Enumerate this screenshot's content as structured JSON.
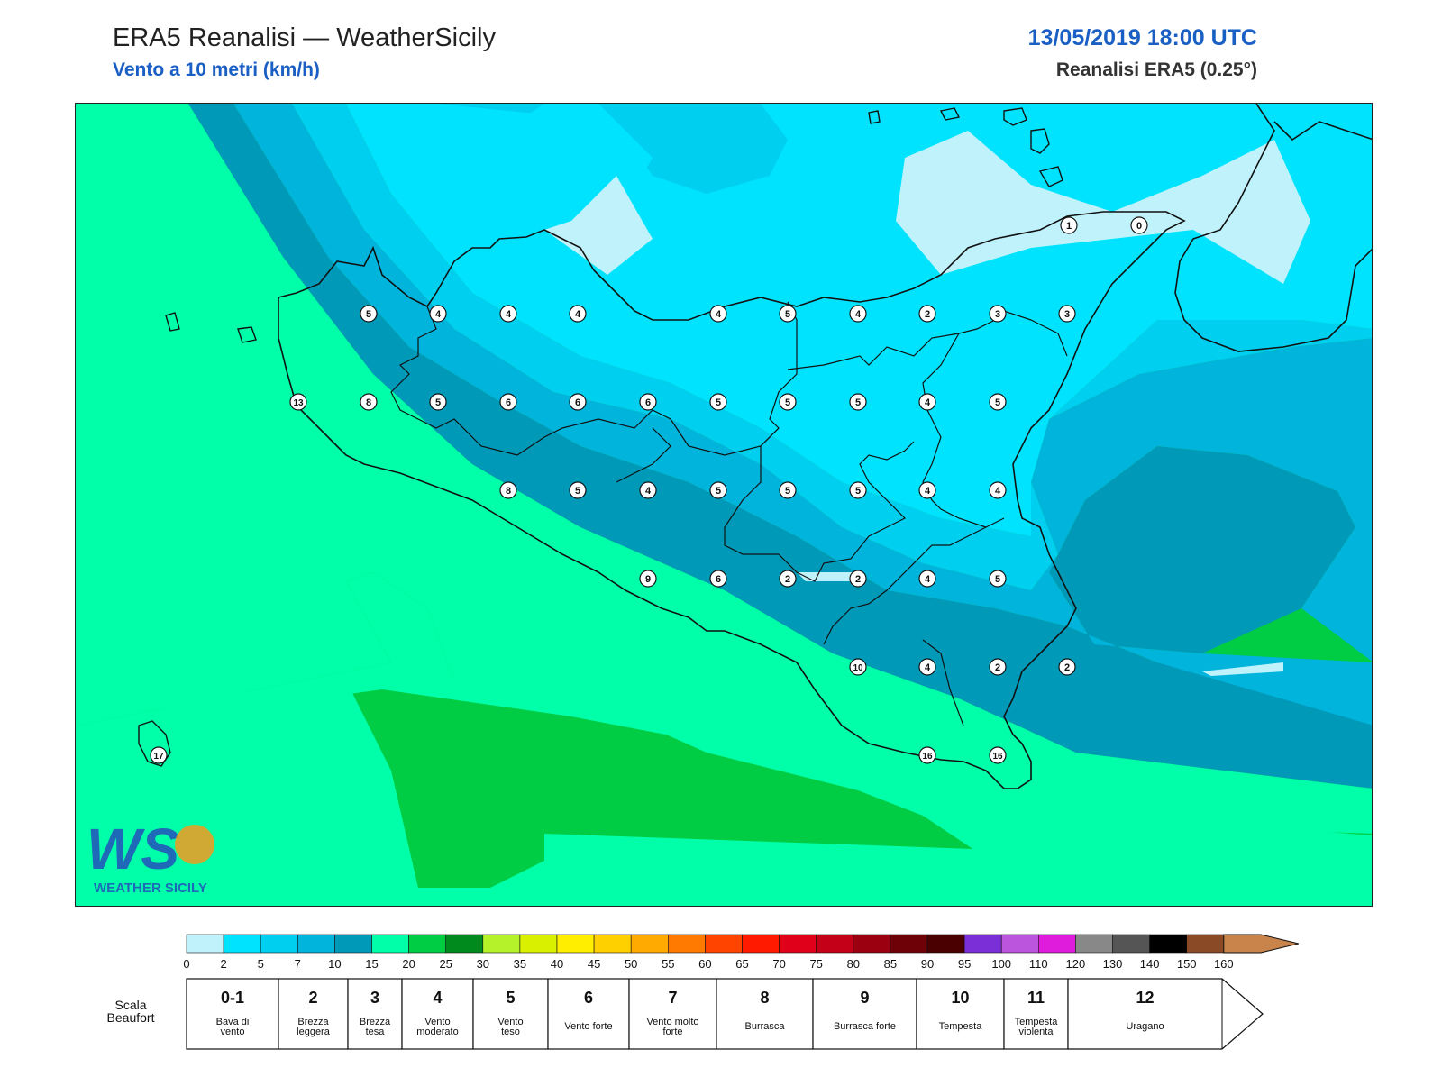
{
  "header": {
    "title": "ERA5 Reanalisi — WeatherSicily",
    "subtitle": "Vento a 10 metri (km/h)",
    "datetime": "13/05/2019 18:00 UTC",
    "source": "Reanalisi ERA5 (0.25°)"
  },
  "logo": {
    "initials": "WS",
    "name": "WEATHER SICILY"
  },
  "wind_labels": [
    {
      "v": "1"
    },
    {
      "v": "0"
    },
    {
      "v": "5"
    },
    {
      "v": "4"
    },
    {
      "v": "4"
    },
    {
      "v": "4"
    },
    {
      "v": "4"
    },
    {
      "v": "5"
    },
    {
      "v": "4"
    },
    {
      "v": "2"
    },
    {
      "v": "3"
    },
    {
      "v": "3"
    },
    {
      "v": "13"
    },
    {
      "v": "8"
    },
    {
      "v": "5"
    },
    {
      "v": "6"
    },
    {
      "v": "6"
    },
    {
      "v": "6"
    },
    {
      "v": "5"
    },
    {
      "v": "5"
    },
    {
      "v": "5"
    },
    {
      "v": "4"
    },
    {
      "v": "5"
    },
    {
      "v": "8"
    },
    {
      "v": "5"
    },
    {
      "v": "4"
    },
    {
      "v": "5"
    },
    {
      "v": "5"
    },
    {
      "v": "5"
    },
    {
      "v": "4"
    },
    {
      "v": "4"
    },
    {
      "v": "9"
    },
    {
      "v": "6"
    },
    {
      "v": "2"
    },
    {
      "v": "2"
    },
    {
      "v": "4"
    },
    {
      "v": "5"
    },
    {
      "v": "10"
    },
    {
      "v": "4"
    },
    {
      "v": "2"
    },
    {
      "v": "2"
    },
    {
      "v": "17"
    },
    {
      "v": "16"
    },
    {
      "v": "16"
    }
  ],
  "colorbar": {
    "ticks": [
      "0",
      "2",
      "5",
      "7",
      "10",
      "15",
      "20",
      "25",
      "30",
      "35",
      "40",
      "45",
      "50",
      "55",
      "60",
      "65",
      "70",
      "75",
      "80",
      "85",
      "90",
      "95",
      "100",
      "110",
      "120",
      "130",
      "140",
      "150",
      "160"
    ],
    "colors": [
      "#bff2fb",
      "#00e3ff",
      "#00cfef",
      "#00b4dc",
      "#0099b8",
      "#00ffa8",
      "#00cc44",
      "#008a1e",
      "#b5f22a",
      "#d9f000",
      "#ffee00",
      "#ffd000",
      "#ffaa00",
      "#ff7a00",
      "#ff4400",
      "#ff1a00",
      "#e0001a",
      "#c40018",
      "#9a0010",
      "#6e0008",
      "#4a0000",
      "#7b2fd6",
      "#bb55dd",
      "#e01cdc",
      "#888888",
      "#555555",
      "#000000",
      "#8a4a26",
      "#c8844a"
    ]
  },
  "beaufort": {
    "title": "Scala Beaufort",
    "classes": [
      {
        "num": "0-1",
        "desc": "Bava di vento"
      },
      {
        "num": "2",
        "desc": "Brezza leggera"
      },
      {
        "num": "3",
        "desc": "Brezza tesa"
      },
      {
        "num": "4",
        "desc": "Vento moderato"
      },
      {
        "num": "5",
        "desc": "Vento teso"
      },
      {
        "num": "6",
        "desc": "Vento forte"
      },
      {
        "num": "7",
        "desc": "Vento molto forte"
      },
      {
        "num": "8",
        "desc": "Burrasca"
      },
      {
        "num": "9",
        "desc": "Burrasca forte"
      },
      {
        "num": "10",
        "desc": "Tempesta"
      },
      {
        "num": "11",
        "desc": "Tempesta violenta"
      },
      {
        "num": "12",
        "desc": "Uragano"
      }
    ]
  }
}
